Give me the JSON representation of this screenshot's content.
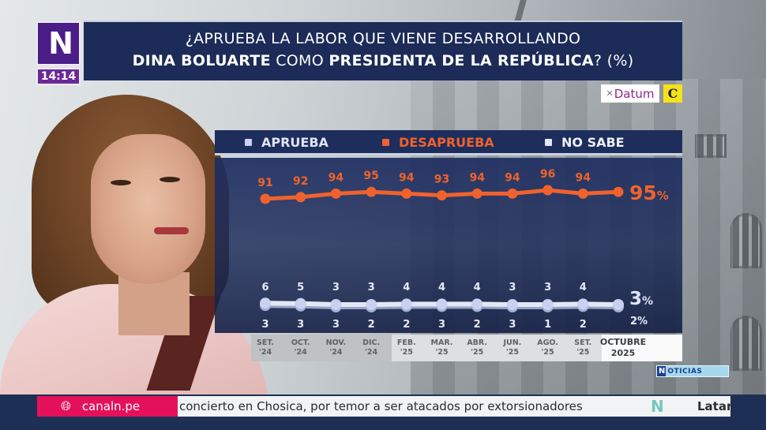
{
  "broadcast": {
    "channel_logo": "N",
    "clock": "14:14",
    "sources": {
      "datum": "Datum",
      "comercio": "C"
    },
    "watermark": {
      "prefix": "N",
      "label": "OTICIAS"
    },
    "ticker": {
      "url": "canaln.pe",
      "headline": "concierto en Chosica, por temor a ser atacados por extorsionadores",
      "next_item": "Latar"
    }
  },
  "title": {
    "line1": "¿APRUEBA LA LABOR QUE VIENE DESARROLLANDO",
    "line2_bold1": "DINA BOLUARTE",
    "line2_normal": " COMO ",
    "line2_bold2": "PRESIDENTA DE LA REPÚBLICA",
    "line2_suffix": "? (%)"
  },
  "colors": {
    "aprueba": "#c9d0f0",
    "desaprueba": "#f0622d",
    "no_sabe": "#e4e8f2",
    "panel": "#1d2d5c"
  },
  "chart_data": {
    "type": "line",
    "title": "¿Aprueba la labor que viene desarrollando Dina Boluarte como Presidenta de la República? (%)",
    "categories": [
      [
        "SET.",
        "'24"
      ],
      [
        "OCT.",
        "'24"
      ],
      [
        "NOV.",
        "'24"
      ],
      [
        "DIC.",
        "'24"
      ],
      [
        "FEB.",
        "'25"
      ],
      [
        "MAR.",
        "'25"
      ],
      [
        "ABR.",
        "'25"
      ],
      [
        "JUN.",
        "'25"
      ],
      [
        "AGO.",
        "'25"
      ],
      [
        "SET.",
        "'25"
      ],
      [
        "OCTUBRE",
        "2025"
      ]
    ],
    "series": [
      {
        "name": "APRUEBA",
        "values": [
          6,
          5,
          3,
          3,
          4,
          4,
          4,
          3,
          3,
          4,
          3
        ],
        "labels": [
          "6",
          "5",
          "3",
          "3",
          "4",
          "4",
          "4",
          "3",
          "3",
          "4",
          "3%"
        ]
      },
      {
        "name": "DESAPRUEBA",
        "values": [
          91,
          92,
          94,
          95,
          94,
          93,
          94,
          94,
          96,
          94,
          95
        ],
        "labels": [
          "91",
          "92",
          "94",
          "95",
          "94",
          "93",
          "94",
          "94",
          "96",
          "94",
          "95%"
        ]
      },
      {
        "name": "NO SABE",
        "values": [
          3,
          3,
          3,
          2,
          2,
          3,
          2,
          3,
          1,
          2,
          2
        ],
        "labels": [
          "3",
          "3",
          "3",
          "2",
          "2",
          "3",
          "2",
          "3",
          "1",
          "2",
          "2%"
        ]
      }
    ],
    "xlabel": "",
    "ylabel": "%",
    "legend": "top",
    "grid": false
  }
}
